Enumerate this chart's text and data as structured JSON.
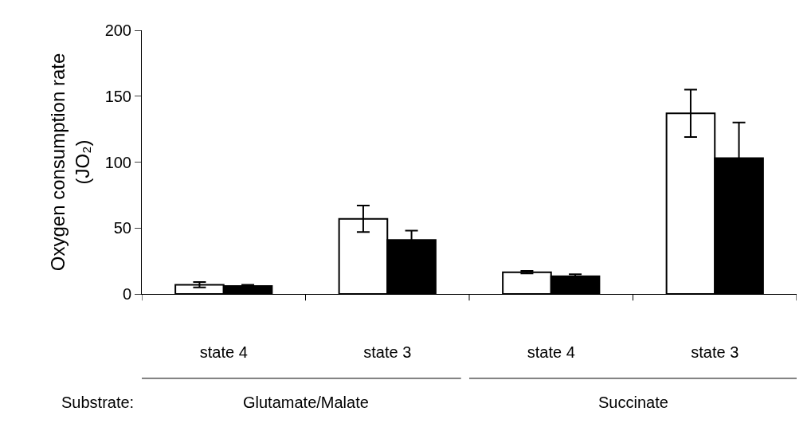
{
  "chart_data": {
    "type": "bar",
    "ylabel": "Oxygen consumption rate\n(JO₂)",
    "categories": [
      "state 4",
      "state 3",
      "state 4",
      "state 3"
    ],
    "series": [
      {
        "color": "#ffffff",
        "values": [
          7,
          57,
          16.5,
          137
        ],
        "errors": [
          2,
          10,
          1,
          18
        ]
      },
      {
        "color": "#000000",
        "values": [
          6,
          41,
          13.5,
          103
        ],
        "errors": [
          1,
          7,
          1.5,
          27
        ]
      }
    ],
    "ylim": [
      0,
      200
    ],
    "yticks": [
      0,
      50,
      100,
      150,
      200
    ],
    "annotations": [
      "Substrate:",
      "Glutamate/Malate",
      "Succinate"
    ]
  }
}
